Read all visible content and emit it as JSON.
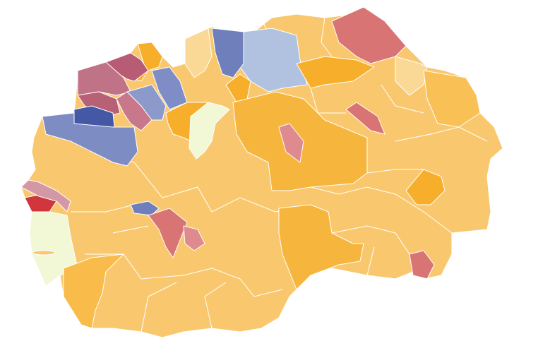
{
  "map": {
    "background": "#ffffff",
    "border_color": "#ffffff",
    "base_fill": "#F9C86E",
    "region_fills": [
      "#B0C2E0",
      "#6E7FBB",
      "#D97474",
      "#FAD996",
      "#FAD996",
      "#F7AF2B",
      "#B85C75",
      "#C07386",
      "#B86075",
      "#C8788A",
      "#8C9ACB",
      "#7F8DC6",
      "#4458A5",
      "#7E8CC4",
      "#F7AF2B",
      "#F2F7D6",
      "#F7AF2B",
      "#F6B63D",
      "#DE8A8E",
      "#D97474",
      "#F7AF2B",
      "#F9C055",
      "#F7AF2B",
      "#F6B63D",
      "#D97474",
      "#D0363B",
      "#D497A5",
      "#F2F7D6",
      "#6E7FBB",
      "#D97474",
      "#DE8A8E",
      "#F9BB4A",
      "#F9C86E"
    ]
  }
}
